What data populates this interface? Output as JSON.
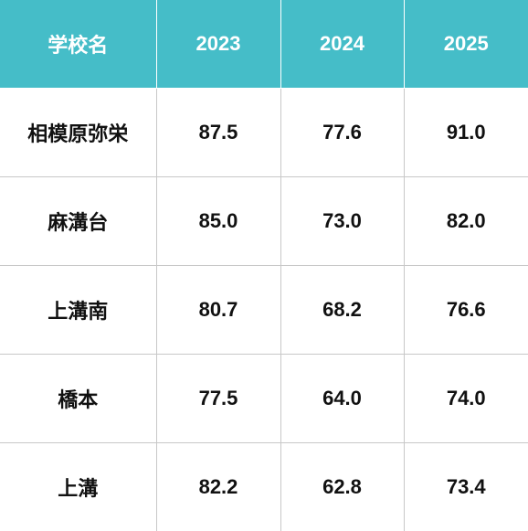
{
  "table": {
    "headers": [
      "学校名",
      "2023",
      "2024",
      "2025"
    ],
    "rows": [
      {
        "school": "相模原弥栄",
        "y2023": "87.5",
        "y2024": "77.6",
        "y2025": "91.0"
      },
      {
        "school": "麻溝台",
        "y2023": "85.0",
        "y2024": "73.0",
        "y2025": "82.0"
      },
      {
        "school": "上溝南",
        "y2023": "80.7",
        "y2024": "68.2",
        "y2025": "76.6"
      },
      {
        "school": "橋本",
        "y2023": "77.5",
        "y2024": "64.0",
        "y2025": "74.0"
      },
      {
        "school": "上溝",
        "y2023": "82.2",
        "y2024": "62.8",
        "y2025": "73.4"
      }
    ]
  },
  "colors": {
    "header_bg": "#45bdc8",
    "header_text": "#ffffff",
    "border": "#c8c8c8",
    "cell_text": "#111111"
  }
}
